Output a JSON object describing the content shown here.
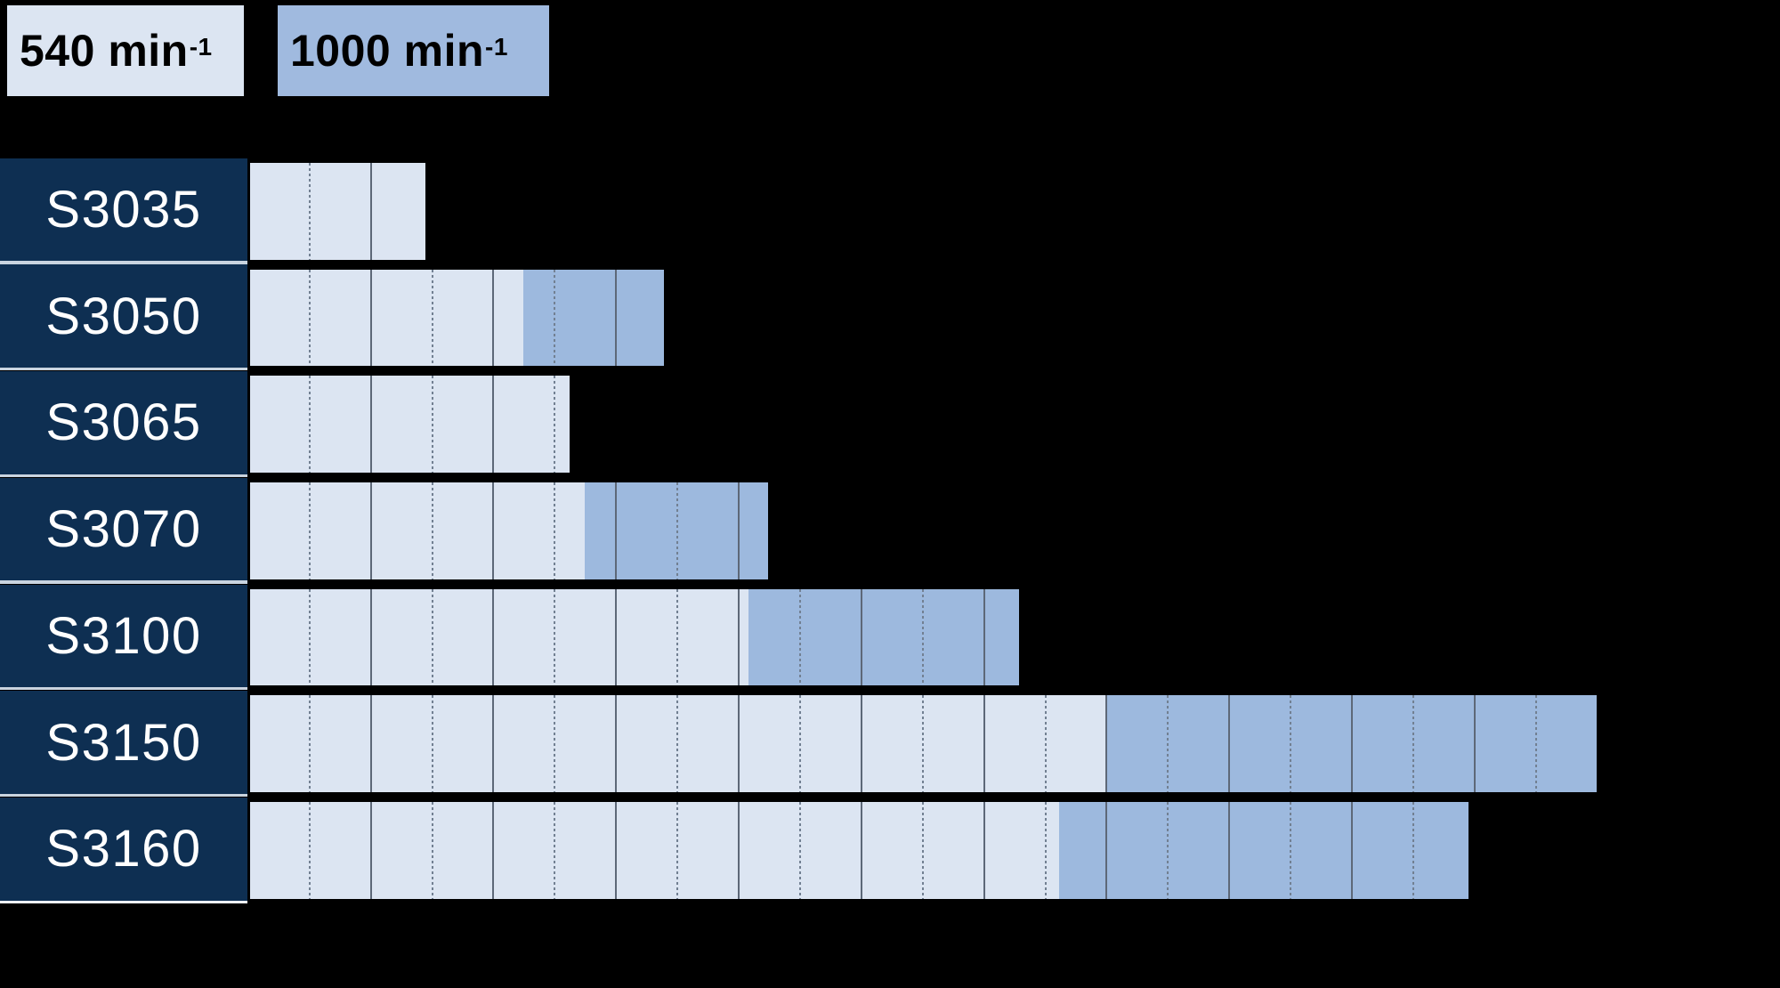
{
  "legend": {
    "items": [
      {
        "text": "540 min",
        "sup": "-1",
        "color": "#dce5f2",
        "text_color": "#000000"
      },
      {
        "text": "1000 min",
        "sup": "-1",
        "color": "#a0badf",
        "text_color": "#000000"
      }
    ]
  },
  "colors": {
    "background": "#000000",
    "label_box": "#0e2f52",
    "label_text": "#ffffff",
    "bar_540": "#dce5f2",
    "bar_1000": "#9db9de",
    "row_separator": "#c9d4e0",
    "bottom_separator": "#eef2f7",
    "gridline_solid": "#5d6878",
    "gridline_dashed": "#728092"
  },
  "chart_data": {
    "type": "bar",
    "orientation": "horizontal",
    "title": "",
    "note": "No axis or value labels are visible in the image; bar extents are expressed in chart grid divisions (solid gridline = 1.0 division, dashed gridline = 0.5 division). Light bars = 540 min-1, darker bars = 1000 min-1 continuing from the light bar end.",
    "categories": [
      "S3035",
      "S3050",
      "S3065",
      "S3070",
      "S3100",
      "S3150",
      "S3160"
    ],
    "series": [
      {
        "name": "540 min-1",
        "color": "#dce5f2",
        "bar_start": [
          0,
          0,
          0,
          0,
          0,
          0,
          0
        ],
        "bar_end": [
          1.45,
          2.25,
          2.63,
          2.75,
          4.09,
          7.0,
          6.62
        ]
      },
      {
        "name": "1000 min-1",
        "color": "#9db9de",
        "bar_start": [
          null,
          2.25,
          null,
          2.75,
          4.09,
          7.0,
          6.62
        ],
        "bar_end": [
          null,
          3.4,
          null,
          4.25,
          6.29,
          11.0,
          9.96
        ]
      }
    ],
    "xlim": [
      0,
      12.4
    ],
    "gridlines": {
      "solid_every": 1.0,
      "dashed_every": 0.5,
      "drawn_only_over_bars": true
    },
    "legend_position": "top-left",
    "axis_labels_visible": false
  }
}
